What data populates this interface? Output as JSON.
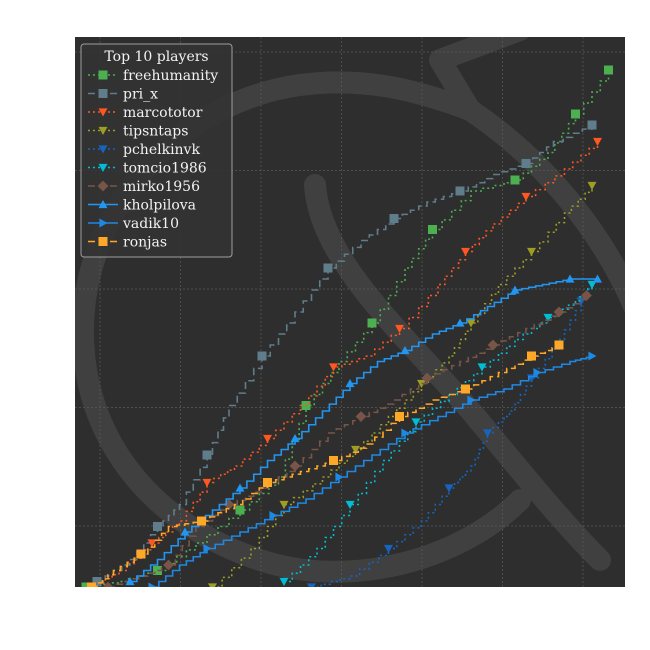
{
  "chart_data": {
    "type": "line",
    "title": "",
    "xlabel": "",
    "ylabel": "",
    "legend": {
      "title": "Top 10 players",
      "placement": "top-left"
    },
    "xlim": [
      0,
      100
    ],
    "ylim": [
      0,
      100
    ],
    "grid": true,
    "background": "#2e2e2e",
    "series": [
      {
        "name": "freehumanity",
        "color": "#4caf50",
        "marker": "square",
        "dash": "dotted",
        "points": [
          [
            2,
            0
          ],
          [
            8,
            1
          ],
          [
            15,
            3
          ],
          [
            22,
            8
          ],
          [
            30,
            14
          ],
          [
            37,
            20
          ],
          [
            42,
            33
          ],
          [
            48,
            41
          ],
          [
            54,
            48
          ],
          [
            60,
            58
          ],
          [
            65,
            65
          ],
          [
            72,
            72
          ],
          [
            80,
            74
          ],
          [
            86,
            79
          ],
          [
            91,
            86
          ],
          [
            97,
            94
          ]
        ]
      },
      {
        "name": "pri_x",
        "color": "#607d8b",
        "marker": "square",
        "dash": "dashed",
        "points": [
          [
            4,
            1
          ],
          [
            10,
            5
          ],
          [
            15,
            11
          ],
          [
            19,
            15
          ],
          [
            24,
            24
          ],
          [
            28,
            33
          ],
          [
            34,
            42
          ],
          [
            40,
            50
          ],
          [
            46,
            58
          ],
          [
            52,
            63
          ],
          [
            58,
            67
          ],
          [
            64,
            70
          ],
          [
            70,
            72
          ],
          [
            76,
            75
          ],
          [
            82,
            77
          ],
          [
            87,
            81
          ],
          [
            94,
            84
          ]
        ]
      },
      {
        "name": "marcototor",
        "color": "#ff5722",
        "marker": "triangle-down",
        "dash": "dotted",
        "points": [
          [
            3,
            0
          ],
          [
            8,
            3
          ],
          [
            14,
            8
          ],
          [
            19,
            12
          ],
          [
            24,
            19
          ],
          [
            29,
            22
          ],
          [
            35,
            27
          ],
          [
            41,
            33
          ],
          [
            47,
            40
          ],
          [
            53,
            42
          ],
          [
            59,
            47
          ],
          [
            66,
            55
          ],
          [
            71,
            61
          ],
          [
            76,
            66
          ],
          [
            82,
            71
          ],
          [
            89,
            76
          ],
          [
            95,
            81
          ]
        ]
      },
      {
        "name": "tipsntaps",
        "color": "#9e9d24",
        "marker": "triangle-down",
        "dash": "dotted",
        "points": [
          [
            25,
            0
          ],
          [
            32,
            7
          ],
          [
            38,
            15
          ],
          [
            45,
            20
          ],
          [
            51,
            25
          ],
          [
            57,
            31
          ],
          [
            63,
            37
          ],
          [
            68,
            42
          ],
          [
            72,
            48
          ],
          [
            77,
            55
          ],
          [
            83,
            61
          ],
          [
            89,
            68
          ],
          [
            94,
            73
          ]
        ]
      },
      {
        "name": "pchelkinvk",
        "color": "#1565c0",
        "marker": "triangle-down",
        "dash": "dotted",
        "points": [
          [
            43,
            0
          ],
          [
            50,
            2
          ],
          [
            57,
            7
          ],
          [
            63,
            12
          ],
          [
            68,
            18
          ],
          [
            72,
            22
          ],
          [
            75,
            28
          ],
          [
            79,
            32
          ],
          [
            83,
            38
          ],
          [
            88,
            45
          ],
          [
            92,
            52
          ],
          [
            94,
            55
          ]
        ]
      },
      {
        "name": "tomcio1986",
        "color": "#00bcd4",
        "marker": "triangle-down",
        "dash": "dotted",
        "points": [
          [
            38,
            1
          ],
          [
            44,
            7
          ],
          [
            50,
            15
          ],
          [
            56,
            23
          ],
          [
            62,
            30
          ],
          [
            68,
            35
          ],
          [
            74,
            40
          ],
          [
            80,
            45
          ],
          [
            86,
            49
          ],
          [
            91,
            52
          ],
          [
            94,
            55
          ]
        ]
      },
      {
        "name": "mirko1956",
        "color": "#795548",
        "marker": "diamond",
        "dash": "dashed",
        "points": [
          [
            6,
            0
          ],
          [
            12,
            2
          ],
          [
            17,
            4
          ],
          [
            22,
            11
          ],
          [
            28,
            15
          ],
          [
            34,
            18
          ],
          [
            40,
            22
          ],
          [
            46,
            28
          ],
          [
            52,
            31
          ],
          [
            58,
            34
          ],
          [
            64,
            38
          ],
          [
            70,
            41
          ],
          [
            76,
            44
          ],
          [
            82,
            47
          ],
          [
            88,
            50
          ],
          [
            93,
            53
          ]
        ]
      },
      {
        "name": "kholpilova",
        "color": "#2196f3",
        "marker": "triangle-up",
        "dash": "solid",
        "points": [
          [
            10,
            1
          ],
          [
            15,
            5
          ],
          [
            20,
            10
          ],
          [
            25,
            14
          ],
          [
            30,
            18
          ],
          [
            35,
            23
          ],
          [
            40,
            27
          ],
          [
            45,
            32
          ],
          [
            50,
            37
          ],
          [
            55,
            41
          ],
          [
            60,
            43
          ],
          [
            65,
            46
          ],
          [
            70,
            48
          ],
          [
            75,
            51
          ],
          [
            80,
            54
          ],
          [
            85,
            55
          ],
          [
            90,
            56
          ],
          [
            95,
            56
          ]
        ]
      },
      {
        "name": "vadik10",
        "color": "#1e88e5",
        "marker": "triangle-right",
        "dash": "solid",
        "points": [
          [
            14,
            0
          ],
          [
            19,
            4
          ],
          [
            24,
            7
          ],
          [
            30,
            10
          ],
          [
            36,
            13
          ],
          [
            42,
            16
          ],
          [
            48,
            20
          ],
          [
            54,
            24
          ],
          [
            60,
            28
          ],
          [
            66,
            31
          ],
          [
            72,
            34
          ],
          [
            78,
            36
          ],
          [
            84,
            39
          ],
          [
            90,
            41
          ],
          [
            94,
            42
          ]
        ]
      },
      {
        "name": "ronjas",
        "color": "#ffa726",
        "marker": "square",
        "dash": "dashed",
        "points": [
          [
            3,
            0
          ],
          [
            7,
            3
          ],
          [
            12,
            6
          ],
          [
            17,
            11
          ],
          [
            23,
            12
          ],
          [
            29,
            15
          ],
          [
            35,
            19
          ],
          [
            41,
            21
          ],
          [
            47,
            23
          ],
          [
            53,
            26
          ],
          [
            59,
            31
          ],
          [
            65,
            34
          ],
          [
            71,
            36
          ],
          [
            77,
            39
          ],
          [
            83,
            42
          ],
          [
            88,
            44
          ]
        ]
      }
    ]
  }
}
